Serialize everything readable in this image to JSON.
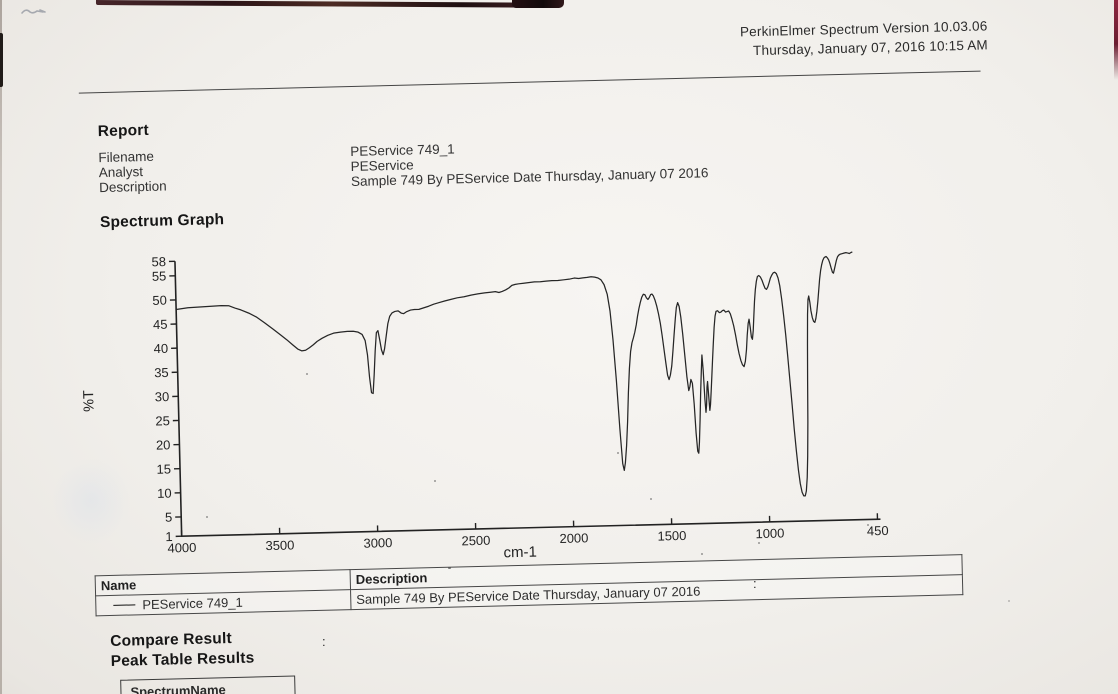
{
  "scan": {
    "header": {
      "line1": "PerkinElmer Spectrum Version 10.03.06",
      "line2": "Thursday, January 07, 2016 10:15 AM"
    },
    "report": {
      "title": "Report",
      "fields": [
        {
          "label": "Filename",
          "value": "PEService 749_1"
        },
        {
          "label": "Analyst",
          "value": "PEService"
        },
        {
          "label": "Description",
          "value": "Sample 749 By PEService Date Thursday, January 07 2016"
        }
      ]
    },
    "spectrum_section_title": "Spectrum Graph",
    "results_table": {
      "col_name": "Name",
      "col_description": "Description",
      "row": {
        "name": "PEService 749_1",
        "description": "Sample 749 By PEService Date Thursday, January 07 2016"
      }
    },
    "compare_result_title": "Compare Result",
    "peak_table_title": "Peak Table Results",
    "peak_table_partial_header": "SpectrumName",
    "ink_color": "#222222"
  },
  "chart_data": {
    "type": "line",
    "title": "Spectrum Graph",
    "xlabel": "cm-1",
    "ylabel": "%T",
    "xlim": [
      4000,
      450
    ],
    "ylim": [
      1,
      58
    ],
    "x_reversed": true,
    "grid": false,
    "x_ticks": [
      4000,
      3500,
      3000,
      2500,
      2000,
      1500,
      1000,
      450
    ],
    "y_ticks": [
      58,
      55,
      50,
      45,
      40,
      35,
      30,
      25,
      20,
      15,
      10,
      5,
      1
    ],
    "series": [
      {
        "name": "PEService 749_1",
        "points": [
          [
            4000,
            48
          ],
          [
            3940,
            48.3
          ],
          [
            3880,
            48.4
          ],
          [
            3820,
            48.5
          ],
          [
            3770,
            48.6
          ],
          [
            3730,
            48.5
          ],
          [
            3700,
            48
          ],
          [
            3670,
            47.6
          ],
          [
            3630,
            46.9
          ],
          [
            3590,
            46
          ],
          [
            3550,
            44.8
          ],
          [
            3510,
            43.5
          ],
          [
            3470,
            42.2
          ],
          [
            3440,
            41.2
          ],
          [
            3410,
            40.1
          ],
          [
            3385,
            39.2
          ],
          [
            3365,
            38.8
          ],
          [
            3345,
            38.9
          ],
          [
            3325,
            39.4
          ],
          [
            3305,
            40
          ],
          [
            3285,
            40.7
          ],
          [
            3260,
            41.3
          ],
          [
            3230,
            41.9
          ],
          [
            3200,
            42.3
          ],
          [
            3165,
            42.5
          ],
          [
            3130,
            42.6
          ],
          [
            3100,
            42.6
          ],
          [
            3075,
            42.4
          ],
          [
            3055,
            41.9
          ],
          [
            3040,
            40.6
          ],
          [
            3030,
            37.6
          ],
          [
            3022,
            33
          ],
          [
            3014,
            29.8
          ],
          [
            3006,
            29.6
          ],
          [
            2998,
            33.5
          ],
          [
            2990,
            38.5
          ],
          [
            2982,
            42.2
          ],
          [
            2974,
            42.6
          ],
          [
            2966,
            40.8
          ],
          [
            2958,
            38.6
          ],
          [
            2950,
            37.6
          ],
          [
            2942,
            38.8
          ],
          [
            2932,
            41.5
          ],
          [
            2922,
            44
          ],
          [
            2912,
            45.5
          ],
          [
            2900,
            46.2
          ],
          [
            2885,
            46.5
          ],
          [
            2868,
            46.6
          ],
          [
            2852,
            46.1
          ],
          [
            2840,
            46
          ],
          [
            2825,
            46.4
          ],
          [
            2805,
            46.7
          ],
          [
            2785,
            46.8
          ],
          [
            2762,
            46.8
          ],
          [
            2738,
            47.1
          ],
          [
            2712,
            47.4
          ],
          [
            2686,
            47.8
          ],
          [
            2660,
            48.1
          ],
          [
            2630,
            48.4
          ],
          [
            2600,
            48.7
          ],
          [
            2565,
            49
          ],
          [
            2530,
            49.2
          ],
          [
            2495,
            49.5
          ],
          [
            2460,
            49.7
          ],
          [
            2425,
            49.9
          ],
          [
            2395,
            50
          ],
          [
            2370,
            50.1
          ],
          [
            2352,
            49.9
          ],
          [
            2335,
            50.1
          ],
          [
            2318,
            50.4
          ],
          [
            2300,
            50.8
          ],
          [
            2285,
            51.3
          ],
          [
            2268,
            51.5
          ],
          [
            2250,
            51.6
          ],
          [
            2225,
            51.7
          ],
          [
            2200,
            51.8
          ],
          [
            2170,
            51.9
          ],
          [
            2140,
            51.9
          ],
          [
            2110,
            52
          ],
          [
            2080,
            52.1
          ],
          [
            2050,
            52.1
          ],
          [
            2020,
            52.2
          ],
          [
            1992,
            52.3
          ],
          [
            1966,
            52.5
          ],
          [
            1944,
            52.4
          ],
          [
            1922,
            52.5
          ],
          [
            1900,
            52.6
          ],
          [
            1880,
            52.7
          ],
          [
            1862,
            52.6
          ],
          [
            1845,
            52.4
          ],
          [
            1830,
            52
          ],
          [
            1815,
            51
          ],
          [
            1800,
            49
          ],
          [
            1788,
            45.5
          ],
          [
            1776,
            39.5
          ],
          [
            1764,
            31
          ],
          [
            1752,
            21
          ],
          [
            1742,
            13.8
          ],
          [
            1735,
            12.4
          ],
          [
            1728,
            14
          ],
          [
            1720,
            17.5
          ],
          [
            1712,
            22.5
          ],
          [
            1704,
            28.5
          ],
          [
            1696,
            33.5
          ],
          [
            1688,
            37
          ],
          [
            1680,
            38.8
          ],
          [
            1672,
            39.8
          ],
          [
            1664,
            41
          ],
          [
            1656,
            42.5
          ],
          [
            1648,
            44.3
          ],
          [
            1640,
            45.9
          ],
          [
            1632,
            47.2
          ],
          [
            1624,
            48.2
          ],
          [
            1616,
            48.8
          ],
          [
            1608,
            48.7
          ],
          [
            1600,
            48
          ],
          [
            1593,
            47.7
          ],
          [
            1586,
            48.1
          ],
          [
            1579,
            48.7
          ],
          [
            1572,
            48.8
          ],
          [
            1565,
            48.4
          ],
          [
            1557,
            47.5
          ],
          [
            1549,
            46.3
          ],
          [
            1541,
            44.7
          ],
          [
            1533,
            42.7
          ],
          [
            1525,
            40.2
          ],
          [
            1517,
            37.2
          ],
          [
            1509,
            34.2
          ],
          [
            1502,
            31.9
          ],
          [
            1495,
            31
          ],
          [
            1488,
            31.9
          ],
          [
            1480,
            33.8
          ],
          [
            1472,
            36.8
          ],
          [
            1464,
            40.3
          ],
          [
            1456,
            43.6
          ],
          [
            1449,
            45.9
          ],
          [
            1442,
            46.9
          ],
          [
            1435,
            46.1
          ],
          [
            1428,
            43.9
          ],
          [
            1420,
            40.4
          ],
          [
            1412,
            35.9
          ],
          [
            1404,
            31.4
          ],
          [
            1396,
            28.6
          ],
          [
            1390,
            29.4
          ],
          [
            1384,
            30.9
          ],
          [
            1377,
            30.1
          ],
          [
            1370,
            25.8
          ],
          [
            1364,
            19.8
          ],
          [
            1358,
            16
          ],
          [
            1353,
            15.6
          ],
          [
            1348,
            17.8
          ],
          [
            1342,
            22.5
          ],
          [
            1336,
            28
          ],
          [
            1330,
            32.5
          ],
          [
            1325,
            35.9
          ],
          [
            1320,
            32.8
          ],
          [
            1315,
            26.8
          ],
          [
            1311,
            24
          ],
          [
            1307,
            25.6
          ],
          [
            1303,
            29.2
          ],
          [
            1299,
            30.4
          ],
          [
            1295,
            27.4
          ],
          [
            1291,
            24.4
          ],
          [
            1287,
            25.6
          ],
          [
            1282,
            28.4
          ],
          [
            1277,
            31.4
          ],
          [
            1271,
            34.8
          ],
          [
            1265,
            38.3
          ],
          [
            1259,
            41.6
          ],
          [
            1253,
            43.9
          ],
          [
            1247,
            44.9
          ],
          [
            1239,
            45
          ],
          [
            1231,
            44.6
          ],
          [
            1223,
            44.7
          ],
          [
            1215,
            45
          ],
          [
            1207,
            45.1
          ],
          [
            1199,
            44.7
          ],
          [
            1191,
            44.8
          ],
          [
            1183,
            44.9
          ],
          [
            1175,
            44.3
          ],
          [
            1167,
            43.2
          ],
          [
            1159,
            41.8
          ],
          [
            1151,
            39.9
          ],
          [
            1143,
            37.9
          ],
          [
            1135,
            36
          ],
          [
            1127,
            34.6
          ],
          [
            1119,
            33.7
          ],
          [
            1111,
            33.3
          ],
          [
            1104,
            34.4
          ],
          [
            1097,
            36.8
          ],
          [
            1091,
            39.8
          ],
          [
            1085,
            42.2
          ],
          [
            1080,
            43.1
          ],
          [
            1075,
            41.4
          ],
          [
            1070,
            39.4
          ],
          [
            1065,
            38.9
          ],
          [
            1060,
            40.7
          ],
          [
            1055,
            43.8
          ],
          [
            1050,
            46.8
          ],
          [
            1044,
            49.2
          ],
          [
            1038,
            50.9
          ],
          [
            1032,
            51.9
          ],
          [
            1025,
            52.1
          ],
          [
            1017,
            51.8
          ],
          [
            1009,
            51.1
          ],
          [
            1001,
            50.1
          ],
          [
            994,
            49.4
          ],
          [
            987,
            49.2
          ],
          [
            980,
            49.7
          ],
          [
            973,
            50.6
          ],
          [
            966,
            51.5
          ],
          [
            959,
            52.1
          ],
          [
            951,
            52.6
          ],
          [
            943,
            52.7
          ],
          [
            935,
            52.4
          ],
          [
            927,
            51.5
          ],
          [
            919,
            49.9
          ],
          [
            911,
            47.1
          ],
          [
            903,
            43.6
          ],
          [
            895,
            39.6
          ],
          [
            887,
            35.1
          ],
          [
            879,
            30.1
          ],
          [
            871,
            25.1
          ],
          [
            863,
            20.1
          ],
          [
            855,
            15.6
          ],
          [
            847,
            11.6
          ],
          [
            839,
            8.8
          ],
          [
            831,
            7
          ],
          [
            823,
            6.2
          ],
          [
            815,
            6.2
          ],
          [
            809,
            7.2
          ],
          [
            803,
            10
          ],
          [
            798,
            14.5
          ],
          [
            793,
            21.5
          ],
          [
            789,
            29.5
          ],
          [
            785,
            37.5
          ],
          [
            781,
            43.8
          ],
          [
            777,
            46.9
          ],
          [
            773,
            47.6
          ],
          [
            768,
            46.3
          ],
          [
            763,
            44.5
          ],
          [
            757,
            43.1
          ],
          [
            751,
            42.3
          ],
          [
            745,
            42.1
          ],
          [
            739,
            42.9
          ],
          [
            733,
            44.4
          ],
          [
            727,
            46.4
          ],
          [
            721,
            48.8
          ],
          [
            715,
            51
          ],
          [
            709,
            52.8
          ],
          [
            703,
            54
          ],
          [
            697,
            54.9
          ],
          [
            691,
            55.4
          ],
          [
            685,
            55.6
          ],
          [
            679,
            55.7
          ],
          [
            673,
            55.4
          ],
          [
            667,
            55
          ],
          [
            661,
            54.3
          ],
          [
            655,
            53.3
          ],
          [
            649,
            52.4
          ],
          [
            644,
            52.2
          ],
          [
            639,
            52.9
          ],
          [
            633,
            53.9
          ],
          [
            627,
            54.9
          ],
          [
            621,
            55.6
          ],
          [
            615,
            55.9
          ],
          [
            608,
            56.1
          ],
          [
            598,
            56.2
          ],
          [
            588,
            56.3
          ],
          [
            578,
            56.4
          ],
          [
            568,
            56.3
          ],
          [
            560,
            56.2
          ],
          [
            552,
            56.4
          ],
          [
            545,
            56.5
          ]
        ]
      }
    ]
  }
}
